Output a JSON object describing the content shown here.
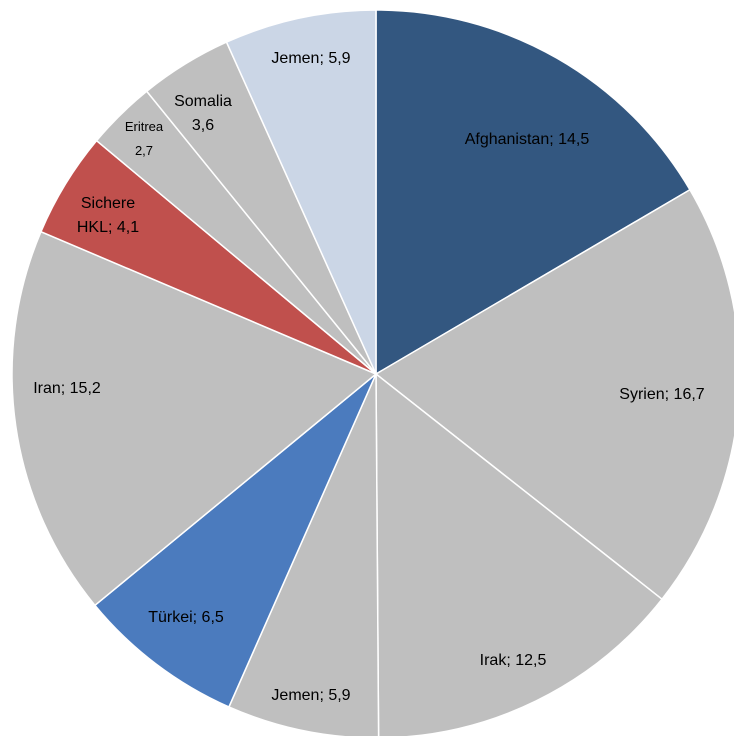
{
  "chart_data": {
    "type": "pie",
    "title": "",
    "start_angle_deg": 0,
    "direction": "clockwise",
    "slices": [
      {
        "label": "Afghanistan",
        "value": 14.5,
        "value_text": "14,5",
        "color": "#335780"
      },
      {
        "label": "Syrien",
        "value": 16.7,
        "value_text": "16,7",
        "color": "#BFBFBF"
      },
      {
        "label": "Irak",
        "value": 12.5,
        "value_text": "12,5",
        "color": "#BFBFBF"
      },
      {
        "label": "Jemen",
        "value": 5.9,
        "value_text": "5,9",
        "color": "#BFBFBF"
      },
      {
        "label": "Türkei",
        "value": 6.5,
        "value_text": "6,5",
        "color": "#4B7BBE"
      },
      {
        "label": "Iran",
        "value": 15.2,
        "value_text": "15,2",
        "color": "#BFBFBF"
      },
      {
        "label": "Sichere HKL",
        "value": 4.1,
        "value_text": "4,1",
        "color": "#C0504D"
      },
      {
        "label": "Eritrea",
        "value": 2.7,
        "value_text": "2,7",
        "color": "#BFBFBF"
      },
      {
        "label": "Somalia",
        "value": 3.6,
        "value_text": "3,6",
        "color": "#BFBFBF"
      },
      {
        "label": "Jemen",
        "value": 5.9,
        "value_text": "5,9",
        "color": "#CBD6E6"
      }
    ]
  }
}
